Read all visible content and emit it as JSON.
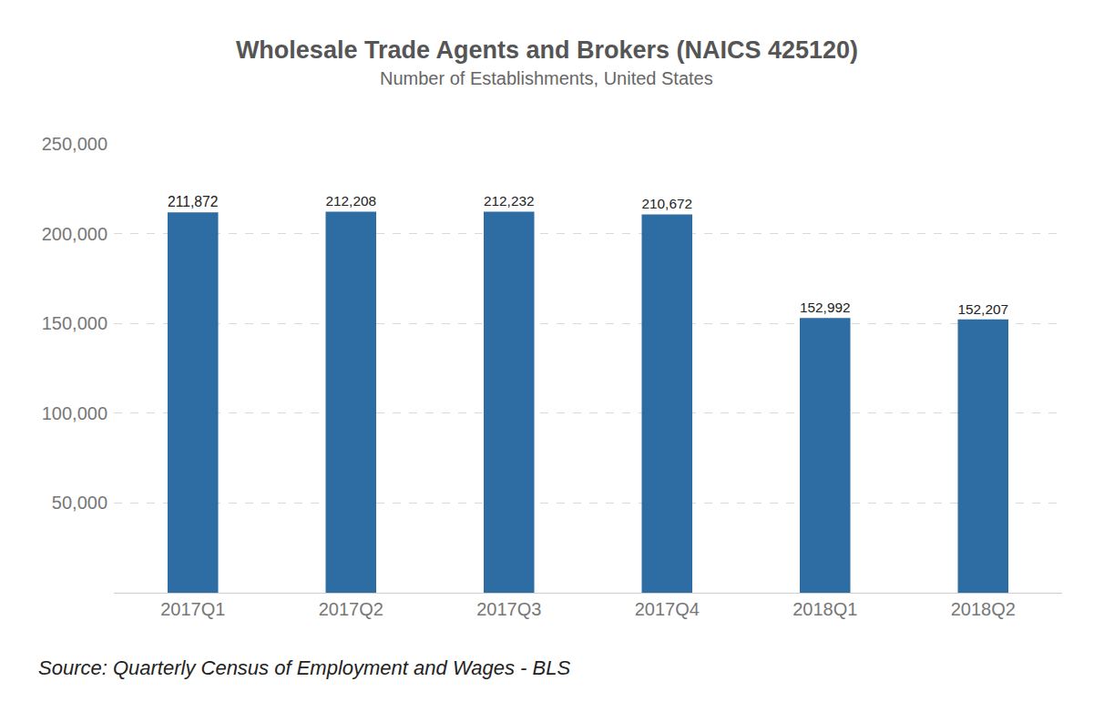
{
  "chart_data": {
    "type": "bar",
    "title": "Wholesale Trade Agents and Brokers (NAICS 425120)",
    "subtitle": "Number of Establishments, United States",
    "source": "Source: Quarterly Census of Employment and Wages - BLS",
    "categories": [
      "2017Q1",
      "2017Q2",
      "2017Q3",
      "2017Q4",
      "2018Q1",
      "2018Q2"
    ],
    "values": [
      211872,
      212208,
      212232,
      210672,
      152992,
      152207
    ],
    "value_labels": [
      "211,872",
      "212,208",
      "212,232",
      "210,672",
      "152,992",
      "152,207"
    ],
    "data_labels": true,
    "color": "#2d6da3",
    "ylim": [
      0,
      250000
    ],
    "yticks": [
      {
        "value": 50000,
        "label": "50,000"
      },
      {
        "value": 100000,
        "label": "100,000"
      },
      {
        "value": 150000,
        "label": "150,000"
      },
      {
        "value": 200000,
        "label": "200,000"
      },
      {
        "value": 250000,
        "label": "250,000"
      }
    ],
    "grid": true
  }
}
